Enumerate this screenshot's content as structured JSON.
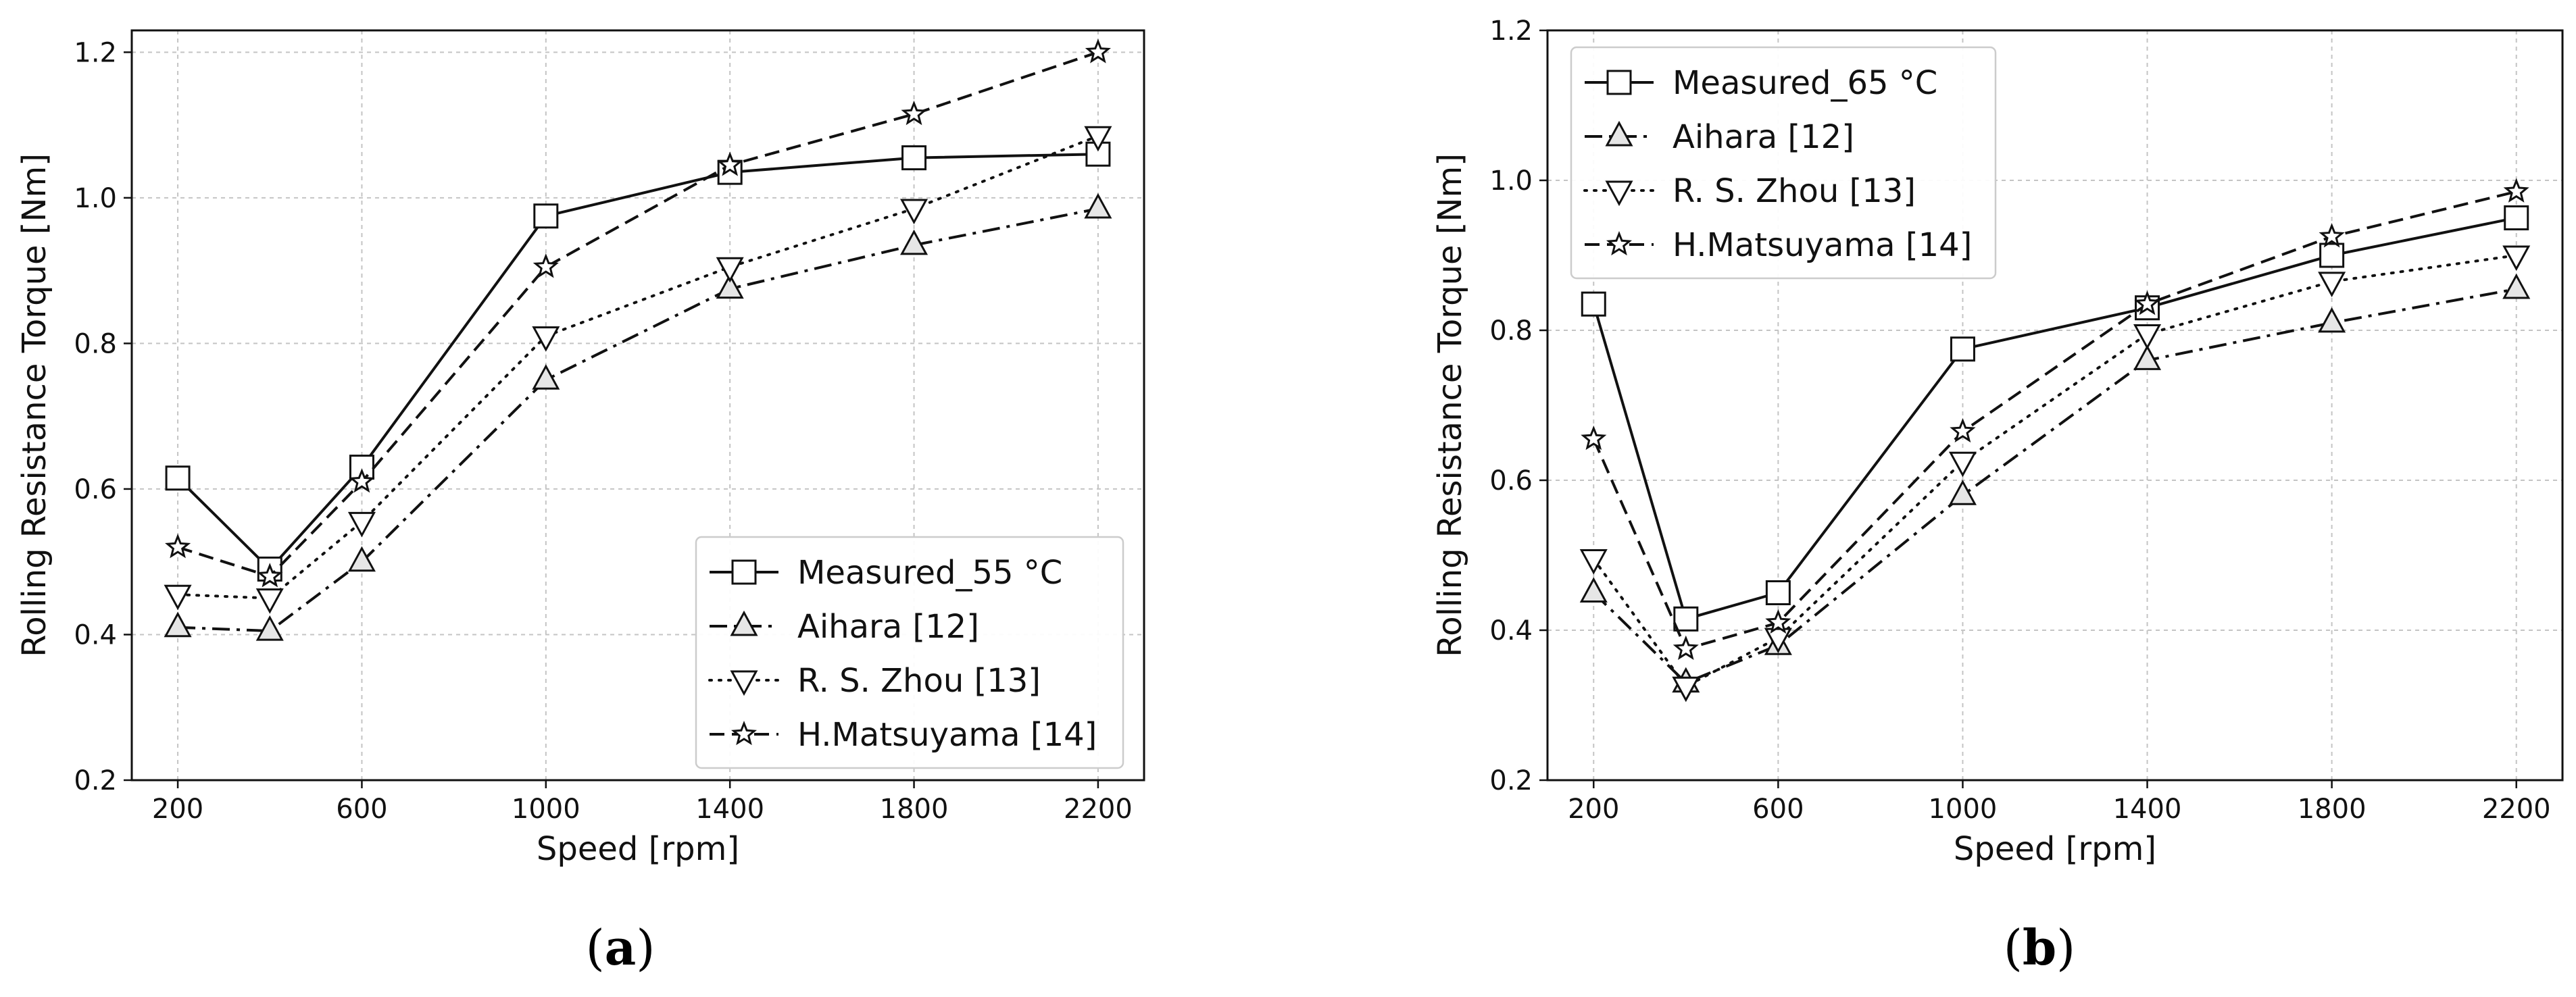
{
  "chart_data": [
    {
      "type": "line",
      "panel": "a",
      "caption_open": "(",
      "caption_letter": "a",
      "caption_close": ")",
      "title": "",
      "xlabel": "Speed [rpm]",
      "ylabel": "Rolling Resistance Torque [Nm]",
      "xlim": [
        100,
        2300
      ],
      "ylim": [
        0.2,
        1.23
      ],
      "x": [
        200,
        400,
        600,
        1000,
        1400,
        1800,
        2200
      ],
      "xticks": [
        200,
        600,
        1000,
        1400,
        1800,
        2200
      ],
      "xtick_labels": [
        "200",
        "600",
        "1000",
        "1400",
        "1800",
        "2200"
      ],
      "yticks": [
        0.2,
        0.4,
        0.6,
        0.8,
        1.0,
        1.2
      ],
      "ytick_labels": [
        "0.2",
        "0.4",
        "0.6",
        "0.8",
        "1.0",
        "1.2"
      ],
      "grid": true,
      "legend_position": "lower-right",
      "series": [
        {
          "name": "Measured_55 °C",
          "values": [
            0.615,
            0.49,
            0.63,
            0.975,
            1.035,
            1.055,
            1.06
          ],
          "marker": "square",
          "linestyle": "solid"
        },
        {
          "name": "Aihara [12]",
          "values": [
            0.41,
            0.405,
            0.5,
            0.75,
            0.875,
            0.935,
            0.985
          ],
          "marker": "triangle-up",
          "linestyle": "dashdot"
        },
        {
          "name": "R. S. Zhou [13]",
          "values": [
            0.455,
            0.45,
            0.555,
            0.81,
            0.905,
            0.985,
            1.085
          ],
          "marker": "triangle-down",
          "linestyle": "dotted"
        },
        {
          "name": "H.Matsuyama [14]",
          "values": [
            0.52,
            0.48,
            0.61,
            0.905,
            1.045,
            1.115,
            1.2
          ],
          "marker": "star",
          "linestyle": "dashed"
        }
      ]
    },
    {
      "type": "line",
      "panel": "b",
      "caption_open": "(",
      "caption_letter": "b",
      "caption_close": ")",
      "title": "",
      "xlabel": "Speed [rpm]",
      "ylabel": "Rolling Resistance Torque [Nm]",
      "xlim": [
        100,
        2300
      ],
      "ylim": [
        0.2,
        1.2
      ],
      "x": [
        200,
        400,
        600,
        1000,
        1400,
        1800,
        2200
      ],
      "xticks": [
        200,
        600,
        1000,
        1400,
        1800,
        2200
      ],
      "xtick_labels": [
        "200",
        "600",
        "1000",
        "1400",
        "1800",
        "2200"
      ],
      "yticks": [
        0.2,
        0.4,
        0.6,
        0.8,
        1.0,
        1.2
      ],
      "ytick_labels": [
        "0.2",
        "0.4",
        "0.6",
        "0.8",
        "1.0",
        "1.2"
      ],
      "grid": true,
      "legend_position": "upper-left",
      "series": [
        {
          "name": "Measured_65 °C",
          "values": [
            0.835,
            0.415,
            0.45,
            0.775,
            0.83,
            0.9,
            0.95
          ],
          "marker": "square",
          "linestyle": "solid"
        },
        {
          "name": "Aihara [12]",
          "values": [
            0.45,
            0.33,
            0.38,
            0.58,
            0.76,
            0.81,
            0.855
          ],
          "marker": "triangle-up",
          "linestyle": "dashdot"
        },
        {
          "name": "R. S. Zhou [13]",
          "values": [
            0.495,
            0.325,
            0.39,
            0.625,
            0.795,
            0.865,
            0.9
          ],
          "marker": "triangle-down",
          "linestyle": "dotted"
        },
        {
          "name": "H.Matsuyama [14]",
          "values": [
            0.655,
            0.375,
            0.41,
            0.665,
            0.835,
            0.925,
            0.985
          ],
          "marker": "star",
          "linestyle": "dashed"
        }
      ]
    }
  ]
}
